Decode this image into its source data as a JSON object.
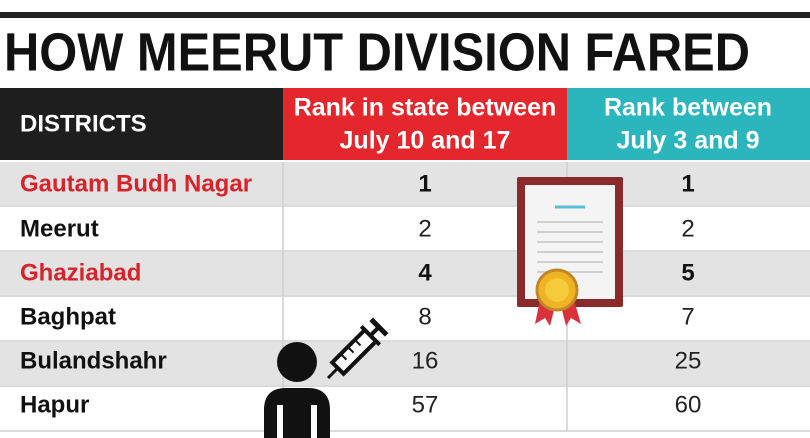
{
  "header": {
    "title": "HOW MEERUT DIVISION FARED"
  },
  "table": {
    "columns": [
      [
        "DISTRICTS"
      ],
      [
        "Rank in state between",
        "July 10 and 17"
      ],
      [
        "Rank between",
        "July 3 and 9"
      ]
    ],
    "rows": [
      [
        "Gautam Budh Nagar",
        1,
        1
      ],
      [
        "Meerut",
        2,
        2
      ],
      [
        "Ghaziabad",
        4,
        5
      ],
      [
        "Baghpat",
        8,
        7
      ],
      [
        "Bulandshahr",
        16,
        25
      ],
      [
        "Hapur",
        57,
        60
      ]
    ]
  }
}
